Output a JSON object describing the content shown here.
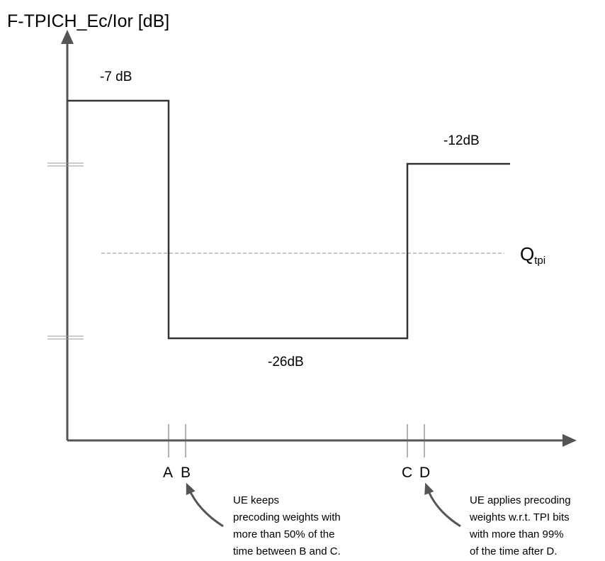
{
  "diagram": {
    "y_axis_title": "F-TPICH_Ec/Ior [dB]",
    "levels": {
      "high": "-7 dB",
      "mid": "-12dB",
      "low": "-26dB"
    },
    "threshold": {
      "main": "Q",
      "sub": "tpi"
    },
    "x_markers": [
      "A",
      "B",
      "C",
      "D"
    ],
    "annotation_left": [
      "UE keeps",
      "precoding weights with",
      "more than 50% of the",
      "time between B and C."
    ],
    "annotation_right": [
      "UE applies precoding",
      "weights w.r.t. TPI bits",
      "with more than 99%",
      "of the time after D."
    ],
    "colors": {
      "line": "#333333",
      "threshold_line": "#8a8a8a",
      "arrow": "#555555"
    }
  }
}
